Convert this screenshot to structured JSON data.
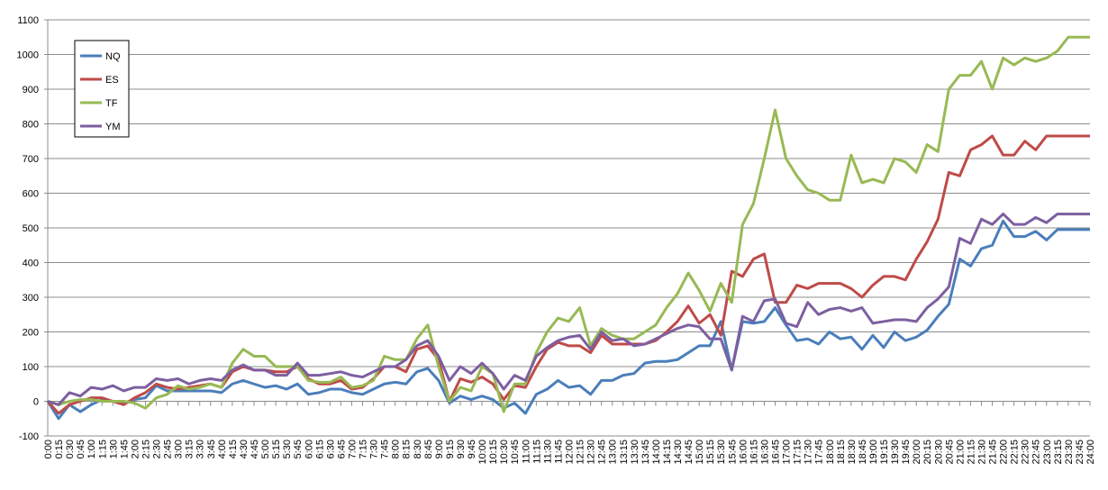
{
  "chart_data": {
    "type": "line",
    "categories": [
      "0:00",
      "0:15",
      "0:30",
      "0:45",
      "1:00",
      "1:15",
      "1:30",
      "1:45",
      "2:00",
      "2:15",
      "2:30",
      "2:45",
      "3:00",
      "3:15",
      "3:30",
      "3:45",
      "4:00",
      "4:15",
      "4:30",
      "4:45",
      "5:00",
      "5:15",
      "5:30",
      "5:45",
      "6:00",
      "6:15",
      "6:30",
      "6:45",
      "7:00",
      "7:15",
      "7:30",
      "7:45",
      "8:00",
      "8:15",
      "8:30",
      "8:45",
      "9:00",
      "9:15",
      "9:30",
      "9:45",
      "10:00",
      "10:15",
      "10:30",
      "10:45",
      "11:00",
      "11:15",
      "11:30",
      "11:45",
      "12:00",
      "12:15",
      "12:30",
      "12:45",
      "13:00",
      "13:15",
      "13:30",
      "13:45",
      "14:00",
      "14:15",
      "14:30",
      "14:45",
      "15:00",
      "15:15",
      "15:30",
      "15:45",
      "16:00",
      "16:15",
      "16:30",
      "16:45",
      "17:00",
      "17:15",
      "17:30",
      "17:45",
      "18:00",
      "18:15",
      "18:30",
      "18:45",
      "19:00",
      "19:15",
      "19:30",
      "19:45",
      "20:00",
      "20:15",
      "20:30",
      "20:45",
      "21:00",
      "21:15",
      "21:30",
      "21:45",
      "22:00",
      "22:15",
      "22:30",
      "22:45",
      "23:00",
      "23:15",
      "23:30",
      "23:45",
      "24:00"
    ],
    "series": [
      {
        "name": "NQ",
        "color": "#4a7ebb",
        "values": [
          0,
          -50,
          -10,
          -30,
          -10,
          5,
          0,
          -5,
          5,
          10,
          45,
          30,
          30,
          30,
          30,
          30,
          25,
          50,
          60,
          50,
          40,
          45,
          35,
          50,
          20,
          25,
          35,
          35,
          25,
          20,
          35,
          50,
          55,
          50,
          85,
          95,
          60,
          -5,
          15,
          5,
          15,
          5,
          -20,
          -5,
          -35,
          20,
          35,
          60,
          40,
          45,
          20,
          60,
          60,
          75,
          80,
          110,
          115,
          115,
          120,
          140,
          160,
          160,
          230,
          90,
          230,
          225,
          230,
          270,
          220,
          175,
          180,
          165,
          200,
          180,
          185,
          150,
          190,
          155,
          200,
          175,
          185,
          205,
          245,
          280,
          410,
          390,
          440,
          450,
          520,
          475,
          475,
          490,
          465,
          495,
          495,
          495,
          495
        ]
      },
      {
        "name": "ES",
        "color": "#be4b48",
        "values": [
          0,
          -35,
          -10,
          0,
          10,
          10,
          0,
          -10,
          10,
          25,
          50,
          40,
          35,
          40,
          45,
          50,
          40,
          85,
          100,
          90,
          90,
          85,
          85,
          100,
          65,
          50,
          50,
          60,
          35,
          40,
          65,
          100,
          100,
          85,
          150,
          160,
          120,
          0,
          65,
          55,
          70,
          50,
          5,
          45,
          40,
          100,
          150,
          170,
          160,
          160,
          140,
          190,
          165,
          165,
          165,
          165,
          175,
          200,
          230,
          275,
          225,
          250,
          190,
          375,
          360,
          410,
          425,
          285,
          285,
          335,
          325,
          340,
          340,
          340,
          325,
          300,
          335,
          360,
          360,
          350,
          410,
          460,
          525,
          660,
          650,
          725,
          740,
          765,
          710,
          710,
          750,
          725,
          765,
          765,
          765,
          765,
          765
        ]
      },
      {
        "name": "TF",
        "color": "#98b954",
        "values": [
          0,
          -10,
          0,
          5,
          5,
          0,
          0,
          0,
          -5,
          -20,
          10,
          20,
          45,
          35,
          40,
          50,
          40,
          110,
          150,
          130,
          130,
          100,
          100,
          100,
          60,
          55,
          55,
          70,
          40,
          45,
          60,
          130,
          120,
          120,
          180,
          220,
          100,
          0,
          40,
          30,
          100,
          80,
          -30,
          50,
          50,
          140,
          200,
          240,
          230,
          270,
          160,
          210,
          190,
          180,
          180,
          200,
          220,
          270,
          310,
          370,
          320,
          260,
          340,
          285,
          510,
          570,
          700,
          840,
          700,
          650,
          610,
          600,
          580,
          580,
          710,
          630,
          640,
          630,
          700,
          690,
          660,
          740,
          720,
          900,
          940,
          940,
          980,
          900,
          990,
          970,
          990,
          980,
          990,
          1010,
          1050,
          1050,
          1050
        ]
      },
      {
        "name": "YM",
        "color": "#7d5fa0",
        "values": [
          0,
          -10,
          25,
          15,
          40,
          35,
          45,
          30,
          40,
          40,
          65,
          60,
          65,
          50,
          60,
          65,
          60,
          90,
          105,
          90,
          90,
          75,
          75,
          110,
          75,
          75,
          80,
          85,
          75,
          70,
          85,
          100,
          100,
          120,
          160,
          175,
          130,
          60,
          100,
          80,
          110,
          80,
          35,
          75,
          60,
          130,
          155,
          175,
          185,
          190,
          150,
          200,
          175,
          180,
          160,
          165,
          180,
          195,
          210,
          220,
          215,
          180,
          180,
          90,
          245,
          230,
          290,
          295,
          225,
          215,
          285,
          250,
          265,
          270,
          260,
          270,
          225,
          230,
          235,
          235,
          230,
          270,
          295,
          330,
          470,
          455,
          525,
          510,
          540,
          510,
          510,
          530,
          515,
          540,
          540,
          540,
          540
        ]
      }
    ],
    "ylim": [
      -100,
      1100
    ],
    "yticks": [
      -100,
      0,
      100,
      200,
      300,
      400,
      500,
      600,
      700,
      800,
      900,
      1000,
      1100
    ],
    "grid": true,
    "legend": "upper left"
  }
}
